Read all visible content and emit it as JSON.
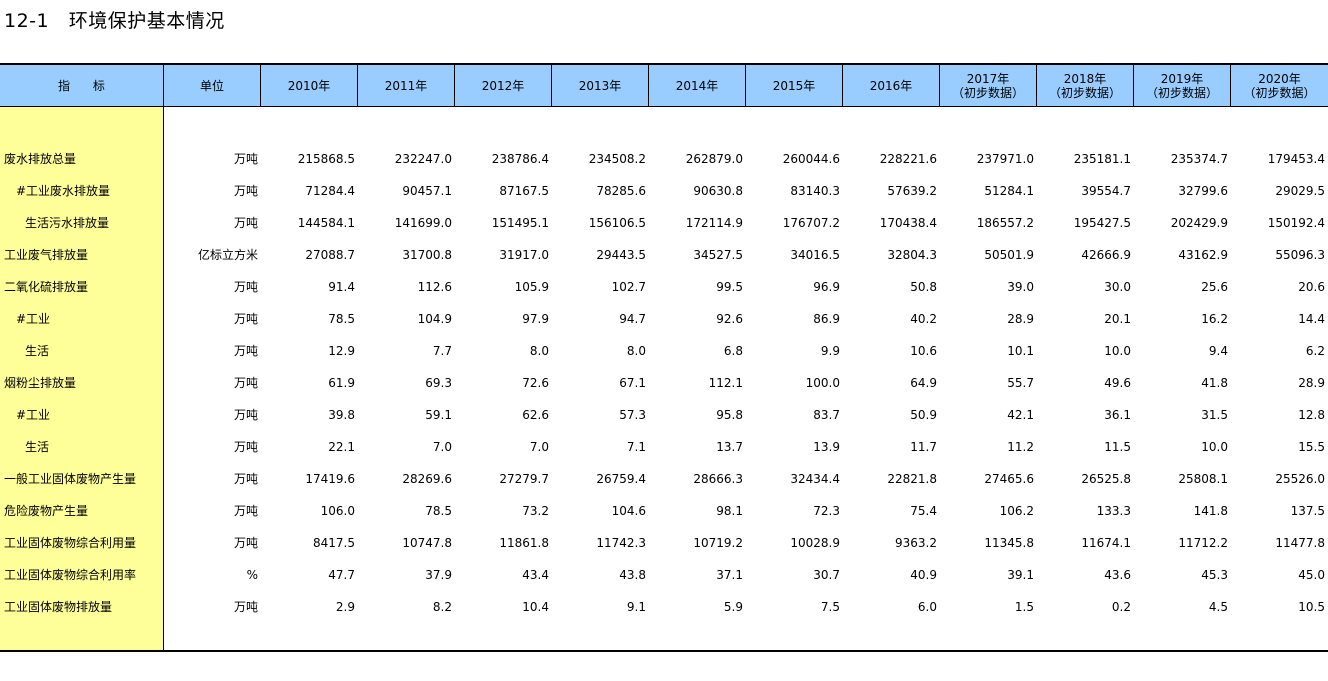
{
  "title": "12-1   环境保护基本情况",
  "header": {
    "indicator": "指      标",
    "unit": "单位",
    "years": [
      {
        "label": "2010年",
        "sub": ""
      },
      {
        "label": "2011年",
        "sub": ""
      },
      {
        "label": "2012年",
        "sub": ""
      },
      {
        "label": "2013年",
        "sub": ""
      },
      {
        "label": "2014年",
        "sub": ""
      },
      {
        "label": "2015年",
        "sub": ""
      },
      {
        "label": "2016年",
        "sub": ""
      },
      {
        "label": "2017年",
        "sub": "（初步数据）"
      },
      {
        "label": "2018年",
        "sub": "（初步数据）"
      },
      {
        "label": "2019年",
        "sub": "（初步数据）"
      },
      {
        "label": "2020年",
        "sub": "（初步数据）"
      }
    ]
  },
  "rows": [
    {
      "name": "废水排放总量",
      "indent": 0,
      "unit": "万吨",
      "values": [
        "215868.5",
        "232247.0",
        "238786.4",
        "234508.2",
        "262879.0",
        "260044.6",
        "228221.6",
        "237971.0",
        "235181.1",
        "235374.7",
        "179453.4"
      ]
    },
    {
      "name": "#工业废水排放量",
      "indent": 1,
      "unit": "万吨",
      "values": [
        "71284.4",
        "90457.1",
        "87167.5",
        "78285.6",
        "90630.8",
        "83140.3",
        "57639.2",
        "51284.1",
        "39554.7",
        "32799.6",
        "29029.5"
      ]
    },
    {
      "name": "生活污水排放量",
      "indent": 2,
      "unit": "万吨",
      "values": [
        "144584.1",
        "141699.0",
        "151495.1",
        "156106.5",
        "172114.9",
        "176707.2",
        "170438.4",
        "186557.2",
        "195427.5",
        "202429.9",
        "150192.4"
      ]
    },
    {
      "name": "工业废气排放量",
      "indent": 0,
      "unit": "亿标立方米",
      "values": [
        "27088.7",
        "31700.8",
        "31917.0",
        "29443.5",
        "34527.5",
        "34016.5",
        "32804.3",
        "50501.9",
        "42666.9",
        "43162.9",
        "55096.3"
      ]
    },
    {
      "name": "二氧化硫排放量",
      "indent": 0,
      "unit": "万吨",
      "values": [
        "91.4",
        "112.6",
        "105.9",
        "102.7",
        "99.5",
        "96.9",
        "50.8",
        "39.0",
        "30.0",
        "25.6",
        "20.6"
      ]
    },
    {
      "name": "#工业",
      "indent": 1,
      "unit": "万吨",
      "values": [
        "78.5",
        "104.9",
        "97.9",
        "94.7",
        "92.6",
        "86.9",
        "40.2",
        "28.9",
        "20.1",
        "16.2",
        "14.4"
      ]
    },
    {
      "name": "生活",
      "indent": 2,
      "unit": "万吨",
      "values": [
        "12.9",
        "7.7",
        "8.0",
        "8.0",
        "6.8",
        "9.9",
        "10.6",
        "10.1",
        "10.0",
        "9.4",
        "6.2"
      ]
    },
    {
      "name": "烟粉尘排放量",
      "indent": 0,
      "unit": "万吨",
      "values": [
        "61.9",
        "69.3",
        "72.6",
        "67.1",
        "112.1",
        "100.0",
        "64.9",
        "55.7",
        "49.6",
        "41.8",
        "28.9"
      ]
    },
    {
      "name": "#工业",
      "indent": 1,
      "unit": "万吨",
      "values": [
        "39.8",
        "59.1",
        "62.6",
        "57.3",
        "95.8",
        "83.7",
        "50.9",
        "42.1",
        "36.1",
        "31.5",
        "12.8"
      ]
    },
    {
      "name": "生活",
      "indent": 2,
      "unit": "万吨",
      "values": [
        "22.1",
        "7.0",
        "7.0",
        "7.1",
        "13.7",
        "13.9",
        "11.7",
        "11.2",
        "11.5",
        "10.0",
        "15.5"
      ]
    },
    {
      "name": "一般工业固体废物产生量",
      "indent": 0,
      "unit": "万吨",
      "values": [
        "17419.6",
        "28269.6",
        "27279.7",
        "26759.4",
        "28666.3",
        "32434.4",
        "22821.8",
        "27465.6",
        "26525.8",
        "25808.1",
        "25526.0"
      ]
    },
    {
      "name": "危险废物产生量",
      "indent": 0,
      "unit": "万吨",
      "values": [
        "106.0",
        "78.5",
        "73.2",
        "104.6",
        "98.1",
        "72.3",
        "75.4",
        "106.2",
        "133.3",
        "141.8",
        "137.5"
      ]
    },
    {
      "name": "工业固体废物综合利用量",
      "indent": 0,
      "unit": "万吨",
      "values": [
        "8417.5",
        "10747.8",
        "11861.8",
        "11742.3",
        "10719.2",
        "10028.9",
        "9363.2",
        "11345.8",
        "11674.1",
        "11712.2",
        "11477.8"
      ]
    },
    {
      "name": "工业固体废物综合利用率",
      "indent": 0,
      "unit": "%",
      "values": [
        "47.7",
        "37.9",
        "43.4",
        "43.8",
        "37.1",
        "30.7",
        "40.9",
        "39.1",
        "43.6",
        "45.3",
        "45.0"
      ]
    },
    {
      "name": "工业固体废物排放量",
      "indent": 0,
      "unit": "万吨",
      "values": [
        "2.9",
        "8.2",
        "10.4",
        "9.1",
        "5.9",
        "7.5",
        "6.0",
        "1.5",
        "0.2",
        "4.5",
        "10.5"
      ]
    }
  ]
}
